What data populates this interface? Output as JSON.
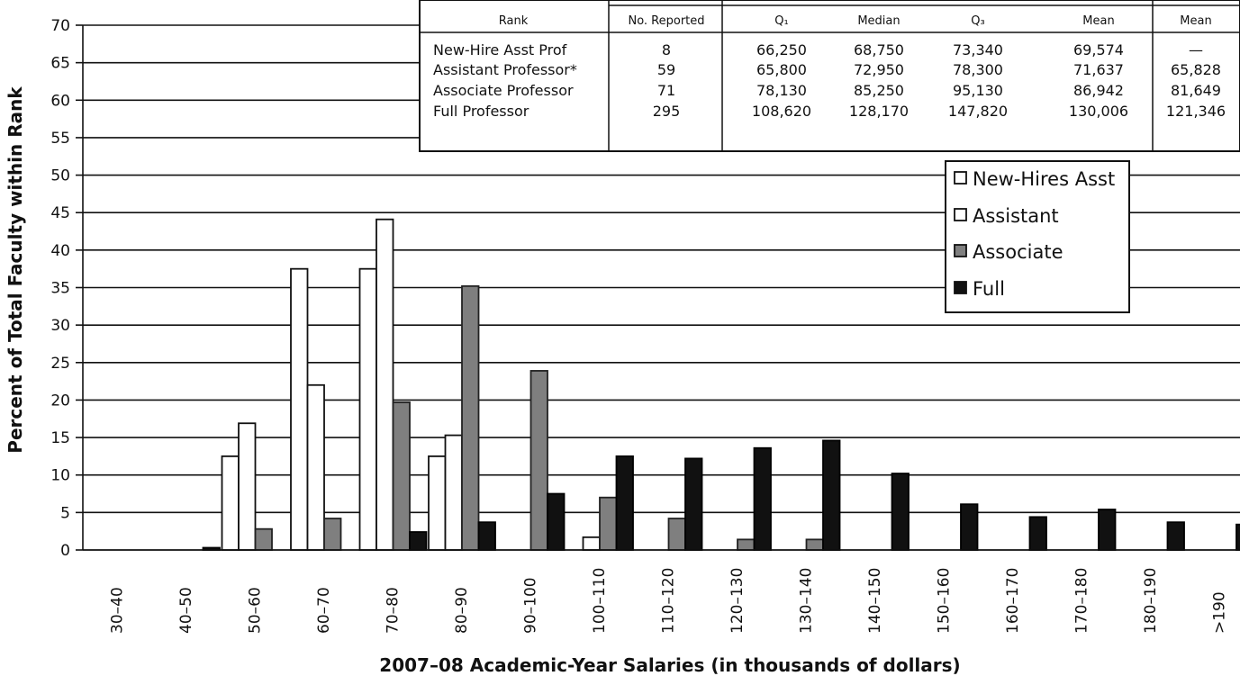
{
  "chart_data": {
    "type": "bar",
    "xlabel": "2007–08 Academic-Year Salaries (in thousands of dollars)",
    "ylabel": "Percent of Total Faculty within Rank",
    "ylim": [
      0,
      70
    ],
    "yticks": [
      0,
      5,
      10,
      15,
      20,
      25,
      30,
      35,
      40,
      45,
      50,
      55,
      60,
      65,
      70
    ],
    "grid": "horizontal",
    "legend_position": "right",
    "categories": [
      "30–40",
      "40–50",
      "50–60",
      "60–70",
      "70–80",
      "80–90",
      "90–100",
      "100–110",
      "110–120",
      "120–130",
      "130–140",
      "140–150",
      "150–160",
      "160–170",
      "170–180",
      "180–190",
      ">190"
    ],
    "series": [
      {
        "name": "New-Hires Asst",
        "color": "#ffffff",
        "values": [
          0,
          0,
          12.5,
          37.5,
          37.5,
          12.5,
          0,
          0,
          0,
          0,
          0,
          0,
          0,
          0,
          0,
          0,
          0
        ]
      },
      {
        "name": "Assistant",
        "color": "#ffffff",
        "values": [
          0,
          0,
          16.9,
          22.0,
          44.1,
          15.3,
          0,
          1.7,
          0,
          0,
          0,
          0,
          0,
          0,
          0,
          0,
          0
        ]
      },
      {
        "name": "Associate",
        "color": "#7f7f7f",
        "values": [
          0,
          0,
          2.8,
          4.2,
          19.7,
          35.2,
          23.9,
          7.0,
          4.2,
          1.4,
          1.4,
          0,
          0,
          0,
          0,
          0,
          0
        ]
      },
      {
        "name": "Full",
        "color": "#111111",
        "values": [
          0,
          0.3,
          0,
          0,
          2.4,
          3.7,
          7.5,
          12.5,
          12.2,
          13.6,
          14.6,
          10.2,
          6.1,
          4.4,
          5.4,
          3.7,
          3.4
        ]
      }
    ],
    "legend": [
      {
        "label": "New-Hires Asst",
        "swatch": "white"
      },
      {
        "label": "Assistant",
        "swatch": "white"
      },
      {
        "label": "Associate",
        "swatch": "gray"
      },
      {
        "label": "Full",
        "swatch": "black"
      }
    ],
    "table": {
      "headers": [
        "Rank",
        "No. Reported",
        "Q₁",
        "Median",
        "Q₃",
        "Mean",
        "Mean"
      ],
      "rows": [
        [
          "New-Hire Asst Prof",
          "8",
          "66,250",
          "68,750",
          "73,340",
          "69,574",
          "—"
        ],
        [
          "Assistant Professor*",
          "59",
          "65,800",
          "72,950",
          "78,300",
          "71,637",
          "65,828"
        ],
        [
          "Associate Professor",
          "71",
          "78,130",
          "85,250",
          "95,130",
          "86,942",
          "81,649"
        ],
        [
          "Full Professor",
          "295",
          "108,620",
          "128,170",
          "147,820",
          "130,006",
          "121,346"
        ]
      ]
    }
  }
}
